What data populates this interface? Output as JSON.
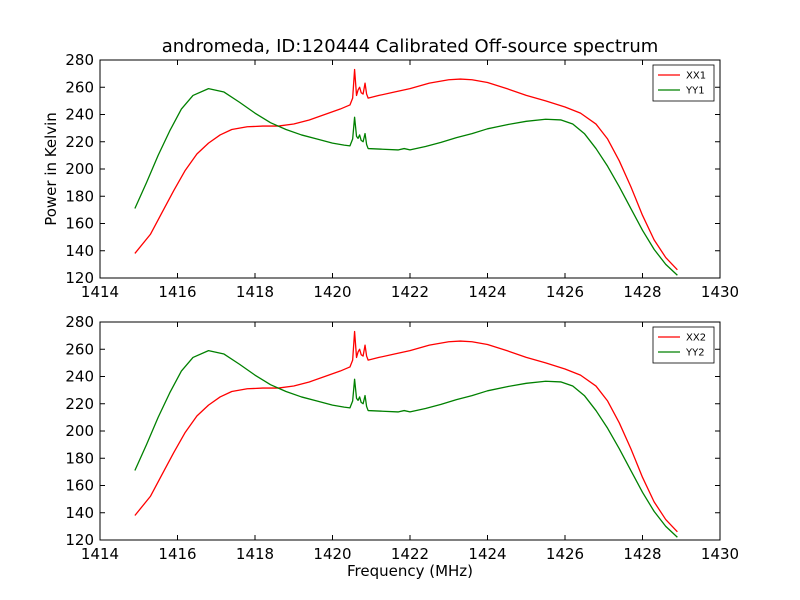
{
  "figure": {
    "title": "andromeda, ID:120444 Calibrated Off-source spectrum",
    "ylabel": "Power in Kelvin",
    "xlabel": "Frequency (MHz)"
  },
  "chart_data": [
    {
      "type": "line",
      "xlim": [
        1414,
        1430
      ],
      "ylim": [
        120,
        280
      ],
      "xticks": [
        1414,
        1416,
        1418,
        1420,
        1422,
        1424,
        1426,
        1428,
        1430
      ],
      "yticks": [
        120,
        140,
        160,
        180,
        200,
        220,
        240,
        260,
        280
      ],
      "legend": "top-right",
      "series": [
        {
          "name": "XX1",
          "color": "#ff0000",
          "points": [
            [
              1414.9,
              138
            ],
            [
              1415.3,
              152
            ],
            [
              1415.6,
              168
            ],
            [
              1415.9,
              184
            ],
            [
              1416.2,
              199
            ],
            [
              1416.5,
              211
            ],
            [
              1416.8,
              219
            ],
            [
              1417.1,
              225
            ],
            [
              1417.4,
              229
            ],
            [
              1417.8,
              231
            ],
            [
              1418.2,
              231.5
            ],
            [
              1418.6,
              231.5
            ],
            [
              1419.0,
              233
            ],
            [
              1419.4,
              236
            ],
            [
              1419.8,
              240
            ],
            [
              1420.2,
              244
            ],
            [
              1420.45,
              247
            ],
            [
              1420.52,
              252
            ],
            [
              1420.57,
              273
            ],
            [
              1420.62,
              254
            ],
            [
              1420.66,
              258
            ],
            [
              1420.7,
              260
            ],
            [
              1420.74,
              256
            ],
            [
              1420.79,
              255
            ],
            [
              1420.84,
              263
            ],
            [
              1420.88,
              255
            ],
            [
              1420.92,
              252
            ],
            [
              1421.2,
              254
            ],
            [
              1421.6,
              256.5
            ],
            [
              1422.0,
              259
            ],
            [
              1422.5,
              263
            ],
            [
              1423.0,
              265.5
            ],
            [
              1423.3,
              266
            ],
            [
              1423.6,
              265.5
            ],
            [
              1424.0,
              263.5
            ],
            [
              1424.5,
              259
            ],
            [
              1425.0,
              254
            ],
            [
              1425.5,
              250
            ],
            [
              1426.0,
              245.5
            ],
            [
              1426.4,
              241
            ],
            [
              1426.8,
              233
            ],
            [
              1427.1,
              222
            ],
            [
              1427.4,
              206
            ],
            [
              1427.7,
              187
            ],
            [
              1428.0,
              166
            ],
            [
              1428.3,
              148
            ],
            [
              1428.6,
              135
            ],
            [
              1428.9,
              126
            ]
          ]
        },
        {
          "name": "YY1",
          "color": "#008000",
          "points": [
            [
              1414.9,
              171
            ],
            [
              1415.2,
              190
            ],
            [
              1415.5,
              210
            ],
            [
              1415.8,
              228
            ],
            [
              1416.1,
              244
            ],
            [
              1416.4,
              254
            ],
            [
              1416.8,
              259
            ],
            [
              1417.2,
              256.5
            ],
            [
              1417.6,
              249
            ],
            [
              1418.0,
              241
            ],
            [
              1418.4,
              234
            ],
            [
              1418.8,
              229
            ],
            [
              1419.2,
              225
            ],
            [
              1419.6,
              222
            ],
            [
              1420.0,
              219
            ],
            [
              1420.3,
              217.5
            ],
            [
              1420.45,
              217
            ],
            [
              1420.52,
              222
            ],
            [
              1420.57,
              238
            ],
            [
              1420.62,
              224
            ],
            [
              1420.66,
              222.5
            ],
            [
              1420.7,
              225
            ],
            [
              1420.74,
              221
            ],
            [
              1420.79,
              220
            ],
            [
              1420.84,
              226
            ],
            [
              1420.88,
              218
            ],
            [
              1420.92,
              215
            ],
            [
              1421.3,
              214.5
            ],
            [
              1421.7,
              214
            ],
            [
              1421.85,
              215
            ],
            [
              1422.0,
              214
            ],
            [
              1422.4,
              216.5
            ],
            [
              1422.8,
              219.5
            ],
            [
              1423.2,
              223
            ],
            [
              1423.6,
              226
            ],
            [
              1424.0,
              229.5
            ],
            [
              1424.5,
              232.5
            ],
            [
              1425.0,
              235
            ],
            [
              1425.5,
              236.5
            ],
            [
              1425.9,
              236
            ],
            [
              1426.2,
              233
            ],
            [
              1426.5,
              226
            ],
            [
              1426.8,
              215
            ],
            [
              1427.1,
              202
            ],
            [
              1427.4,
              187
            ],
            [
              1427.7,
              171
            ],
            [
              1428.0,
              155
            ],
            [
              1428.3,
              141
            ],
            [
              1428.6,
              130
            ],
            [
              1428.9,
              122
            ]
          ]
        }
      ]
    },
    {
      "type": "line",
      "xlim": [
        1414,
        1430
      ],
      "ylim": [
        120,
        280
      ],
      "xticks": [
        1414,
        1416,
        1418,
        1420,
        1422,
        1424,
        1426,
        1428,
        1430
      ],
      "yticks": [
        120,
        140,
        160,
        180,
        200,
        220,
        240,
        260,
        280
      ],
      "legend": "top-right",
      "series": [
        {
          "name": "XX2",
          "color": "#ff0000",
          "points": [
            [
              1414.9,
              138
            ],
            [
              1415.3,
              152
            ],
            [
              1415.6,
              168
            ],
            [
              1415.9,
              184
            ],
            [
              1416.2,
              199
            ],
            [
              1416.5,
              211
            ],
            [
              1416.8,
              219
            ],
            [
              1417.1,
              225
            ],
            [
              1417.4,
              229
            ],
            [
              1417.8,
              231
            ],
            [
              1418.2,
              231.5
            ],
            [
              1418.6,
              231.5
            ],
            [
              1419.0,
              233
            ],
            [
              1419.4,
              236
            ],
            [
              1419.8,
              240
            ],
            [
              1420.2,
              244
            ],
            [
              1420.45,
              247
            ],
            [
              1420.52,
              252
            ],
            [
              1420.57,
              273
            ],
            [
              1420.62,
              254
            ],
            [
              1420.66,
              258
            ],
            [
              1420.7,
              260
            ],
            [
              1420.74,
              256
            ],
            [
              1420.79,
              255
            ],
            [
              1420.84,
              263
            ],
            [
              1420.88,
              255
            ],
            [
              1420.92,
              252
            ],
            [
              1421.2,
              254
            ],
            [
              1421.6,
              256.5
            ],
            [
              1422.0,
              259
            ],
            [
              1422.5,
              263
            ],
            [
              1423.0,
              265.5
            ],
            [
              1423.3,
              266
            ],
            [
              1423.6,
              265.5
            ],
            [
              1424.0,
              263.5
            ],
            [
              1424.5,
              259
            ],
            [
              1425.0,
              254
            ],
            [
              1425.5,
              250
            ],
            [
              1426.0,
              245.5
            ],
            [
              1426.4,
              241
            ],
            [
              1426.8,
              233
            ],
            [
              1427.1,
              222
            ],
            [
              1427.4,
              206
            ],
            [
              1427.7,
              187
            ],
            [
              1428.0,
              166
            ],
            [
              1428.3,
              148
            ],
            [
              1428.6,
              135
            ],
            [
              1428.9,
              126
            ]
          ]
        },
        {
          "name": "YY2",
          "color": "#008000",
          "points": [
            [
              1414.9,
              171
            ],
            [
              1415.2,
              190
            ],
            [
              1415.5,
              210
            ],
            [
              1415.8,
              228
            ],
            [
              1416.1,
              244
            ],
            [
              1416.4,
              254
            ],
            [
              1416.8,
              259
            ],
            [
              1417.2,
              256.5
            ],
            [
              1417.6,
              249
            ],
            [
              1418.0,
              241
            ],
            [
              1418.4,
              234
            ],
            [
              1418.8,
              229
            ],
            [
              1419.2,
              225
            ],
            [
              1419.6,
              222
            ],
            [
              1420.0,
              219
            ],
            [
              1420.3,
              217.5
            ],
            [
              1420.45,
              217
            ],
            [
              1420.52,
              222
            ],
            [
              1420.57,
              238
            ],
            [
              1420.62,
              224
            ],
            [
              1420.66,
              222.5
            ],
            [
              1420.7,
              225
            ],
            [
              1420.74,
              221
            ],
            [
              1420.79,
              220
            ],
            [
              1420.84,
              226
            ],
            [
              1420.88,
              218
            ],
            [
              1420.92,
              215
            ],
            [
              1421.3,
              214.5
            ],
            [
              1421.7,
              214
            ],
            [
              1421.85,
              215
            ],
            [
              1422.0,
              214
            ],
            [
              1422.4,
              216.5
            ],
            [
              1422.8,
              219.5
            ],
            [
              1423.2,
              223
            ],
            [
              1423.6,
              226
            ],
            [
              1424.0,
              229.5
            ],
            [
              1424.5,
              232.5
            ],
            [
              1425.0,
              235
            ],
            [
              1425.5,
              236.5
            ],
            [
              1425.9,
              236
            ],
            [
              1426.2,
              233
            ],
            [
              1426.5,
              226
            ],
            [
              1426.8,
              215
            ],
            [
              1427.1,
              202
            ],
            [
              1427.4,
              187
            ],
            [
              1427.7,
              171
            ],
            [
              1428.0,
              155
            ],
            [
              1428.3,
              141
            ],
            [
              1428.6,
              130
            ],
            [
              1428.9,
              122
            ]
          ]
        }
      ]
    }
  ]
}
